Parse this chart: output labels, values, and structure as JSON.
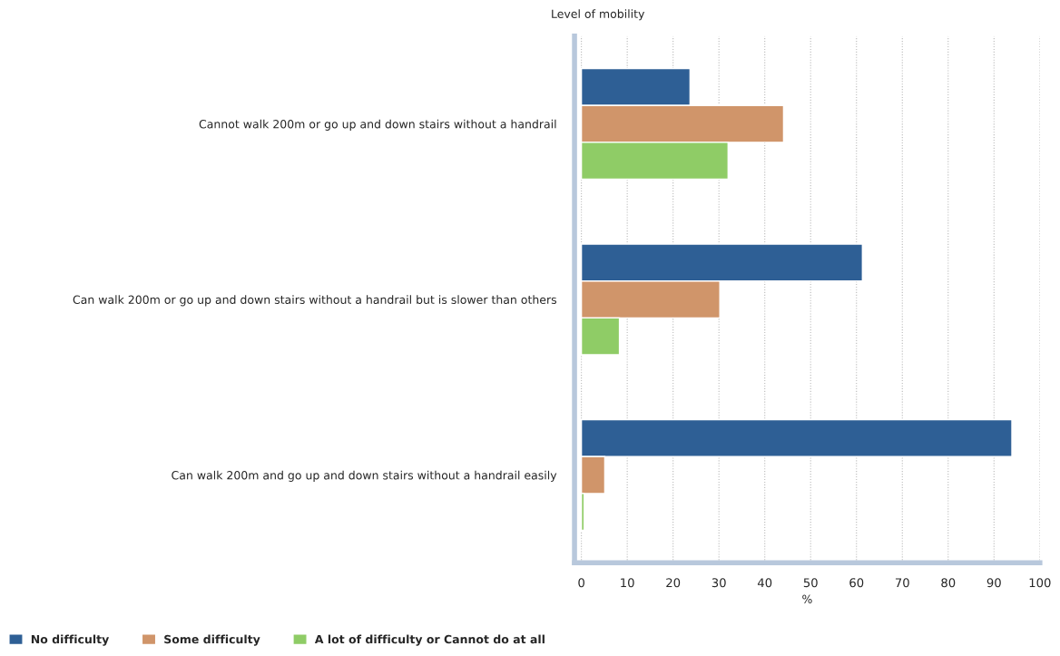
{
  "chart_data": {
    "type": "bar",
    "orientation": "horizontal",
    "ylabel": "Level of mobility",
    "xlabel": "%",
    "categories": [
      "Cannot walk 200m or go up and down stairs without a handrail",
      "Can walk 200m or go up and down stairs without a handrail but is slower than others",
      "Can walk 200m and go up and down stairs without a handrail easily"
    ],
    "series": [
      {
        "name": "No difficulty",
        "color": "#2e5f95",
        "values": [
          23.7,
          61.3,
          93.9
        ]
      },
      {
        "name": "Some difficulty",
        "color": "#d0956a",
        "values": [
          44.1,
          30.2,
          5.1
        ]
      },
      {
        "name": "A lot of difficulty or Cannot do at all",
        "color": "#8fcc66",
        "values": [
          32.0,
          8.3,
          0.6
        ]
      }
    ],
    "xlim": [
      -1.5,
      100
    ],
    "xticks": [
      0,
      10,
      20,
      30,
      40,
      50,
      60,
      70,
      80,
      90,
      100
    ],
    "grid": "x",
    "legend": "bottom left"
  }
}
